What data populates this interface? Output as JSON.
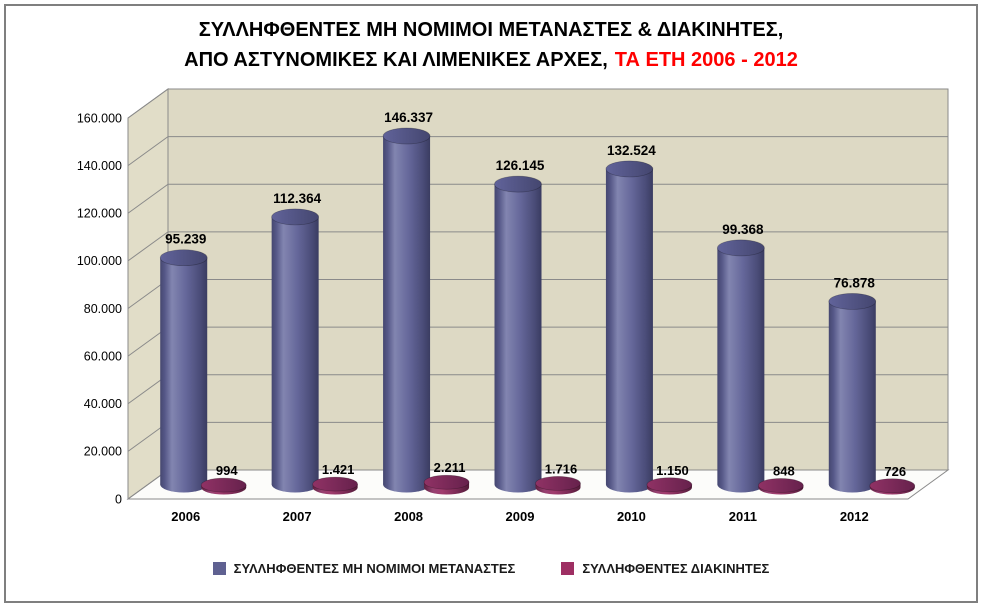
{
  "title": {
    "line1": "ΣΥΛΛΗΦΘΕΝΤΕΣ ΜΗ ΝΟΜΙΜΟΙ ΜΕΤΑΝΑΣΤΕΣ & ΔΙΑΚΙΝΗΤΕΣ,",
    "line2_black": "ΑΠΟ ΑΣΤΥΝΟΜΙΚΕΣ ΚΑΙ ΛΙΜΕΝΙΚΕΣ ΑΡΧΕΣ,",
    "line2_red": "ΤΑ ΕΤΗ 2006 - 2012",
    "red_color": "#FF0000"
  },
  "chart_data": {
    "type": "bar",
    "subtype": "3d-cylinder",
    "categories": [
      "2006",
      "2007",
      "2008",
      "2009",
      "2010",
      "2011",
      "2012"
    ],
    "series": [
      {
        "name": "ΣΥΛΛΗΦΘΕΝΤΕΣ ΜΗ ΝΟΜΙΜΟΙ ΜΕΤΑΝΑΣΤΕΣ",
        "color": "#5F6191",
        "values": [
          95239,
          112364,
          146337,
          126145,
          132524,
          99368,
          76878
        ],
        "labels": [
          "95.239",
          "112.364",
          "146.337",
          "126.145",
          "132.524",
          "99.368",
          "76.878"
        ]
      },
      {
        "name": "ΣΥΛΛΗΦΘΕΝΤΕΣ ΔΙΑΚΙΝΗΤΕΣ",
        "color": "#9E2F63",
        "values": [
          994,
          1421,
          2211,
          1716,
          1150,
          848,
          726
        ],
        "labels": [
          "994",
          "1.421",
          "2.211",
          "1.716",
          "1.150",
          "848",
          "726"
        ]
      }
    ],
    "y_axis": {
      "min": 0,
      "max": 160000,
      "step": 20000,
      "tick_labels": [
        "0",
        "20.000",
        "40.000",
        "60.000",
        "80.000",
        "100.000",
        "120.000",
        "140.000",
        "160.000"
      ]
    },
    "grid": true,
    "legend_position": "bottom",
    "wall_color": "#DDD9C4",
    "floor_color": "#FCFCFA",
    "gridline_color": "#8A8A8A"
  },
  "legend": {
    "items": [
      {
        "label": "ΣΥΛΛΗΦΘΕΝΤΕΣ ΜΗ ΝΟΜΙΜΟΙ ΜΕΤΑΝΑΣΤΕΣ",
        "color": "#5F6191"
      },
      {
        "label": "ΣΥΛΛΗΦΘΕΝΤΕΣ ΔΙΑΚΙΝΗΤΕΣ",
        "color": "#9E2F63"
      }
    ]
  }
}
